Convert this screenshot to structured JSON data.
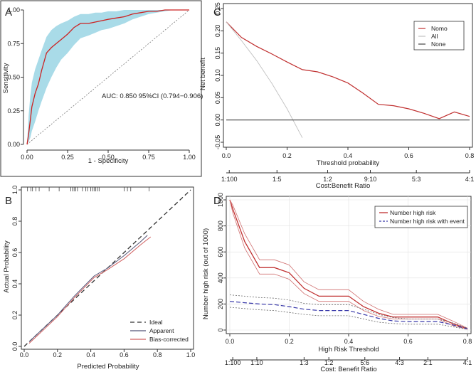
{
  "chart_data": [
    {
      "panel": "A",
      "type": "line",
      "xlabel": "1 - Specificity",
      "ylabel": "Sensitivity",
      "xlim": [
        0,
        1
      ],
      "ylim": [
        0,
        1
      ],
      "xticks": [
        "0.00",
        "0.25",
        "0.50",
        "0.75",
        "1.00"
      ],
      "yticks": [
        "0.00",
        "0.25",
        "0.50",
        "0.75",
        "1.00"
      ],
      "annotation": "AUC: 0.850 95%CI (0.794−0.906)",
      "roc": {
        "x": [
          0,
          0.01,
          0.02,
          0.03,
          0.05,
          0.07,
          0.09,
          0.12,
          0.15,
          0.18,
          0.21,
          0.25,
          0.29,
          0.33,
          0.38,
          0.42,
          0.46,
          0.5,
          0.55,
          0.6,
          0.65,
          0.7,
          0.75,
          0.8,
          0.85,
          0.9,
          1.0
        ],
        "y": [
          0,
          0.08,
          0.18,
          0.28,
          0.38,
          0.45,
          0.55,
          0.68,
          0.72,
          0.75,
          0.78,
          0.82,
          0.87,
          0.9,
          0.9,
          0.91,
          0.92,
          0.93,
          0.94,
          0.95,
          0.97,
          0.98,
          0.99,
          0.99,
          1.0,
          1.0,
          1.0
        ]
      },
      "ci_upper": [
        0,
        0.22,
        0.36,
        0.46,
        0.56,
        0.63,
        0.7,
        0.8,
        0.85,
        0.88,
        0.9,
        0.92,
        0.95,
        0.97,
        0.97,
        0.98,
        0.98,
        0.99,
        0.99,
        1.0,
        1.0,
        1.0,
        1.0,
        1.0,
        1.0,
        1.0,
        1.0
      ],
      "ci_lower": [
        0,
        0.02,
        0.05,
        0.1,
        0.17,
        0.25,
        0.32,
        0.42,
        0.5,
        0.57,
        0.63,
        0.68,
        0.74,
        0.79,
        0.81,
        0.83,
        0.85,
        0.86,
        0.88,
        0.9,
        0.93,
        0.95,
        0.97,
        0.98,
        0.99,
        1.0,
        1.0
      ],
      "colors": {
        "roc": "#cc2222",
        "ci": "#a9dbe8",
        "diagonal": "#777777"
      }
    },
    {
      "panel": "B",
      "type": "line",
      "xlabel": "Predicted Probability",
      "ylabel": "Actual Probability",
      "xlim": [
        0,
        1
      ],
      "ylim": [
        0,
        1
      ],
      "xticks": [
        "0.0",
        "0.2",
        "0.4",
        "0.6",
        "0.8",
        "1.0"
      ],
      "yticks": [
        "0.0",
        "0.2",
        "0.4",
        "0.6",
        "0.8",
        "1.0"
      ],
      "rug": [
        0.02,
        0.04,
        0.05,
        0.07,
        0.09,
        0.15,
        0.21,
        0.28,
        0.29,
        0.3,
        0.31,
        0.32,
        0.35,
        0.37,
        0.38,
        0.4,
        0.41,
        0.42,
        0.43,
        0.44,
        0.45,
        0.6,
        0.62,
        0.64,
        0.75
      ],
      "series": [
        {
          "name": "Ideal",
          "x": [
            0,
            1
          ],
          "y": [
            0,
            1
          ],
          "color": "#333333",
          "dash": "6,4"
        },
        {
          "name": "Apparent",
          "x": [
            0.03,
            0.1,
            0.2,
            0.3,
            0.42,
            0.5,
            0.6,
            0.7,
            0.74
          ],
          "y": [
            0.03,
            0.1,
            0.2,
            0.32,
            0.45,
            0.5,
            0.58,
            0.67,
            0.71
          ],
          "color": "#555577",
          "dash": ""
        },
        {
          "name": "Bias-corrected",
          "x": [
            0.03,
            0.1,
            0.2,
            0.3,
            0.42,
            0.5,
            0.6,
            0.7,
            0.76
          ],
          "y": [
            0.02,
            0.09,
            0.19,
            0.31,
            0.44,
            0.49,
            0.56,
            0.65,
            0.7
          ],
          "color": "#d06060",
          "dash": ""
        }
      ],
      "legend": [
        "Ideal",
        "Apparent",
        "Bias-corrected"
      ]
    },
    {
      "panel": "C",
      "type": "line",
      "xlabel": "Threshold probability",
      "ylabel": "Net benefit",
      "x2label": "Cost:Benefit Ratio",
      "xlim": [
        0,
        0.8
      ],
      "ylim": [
        -0.05,
        0.25
      ],
      "xticks": [
        "0.0",
        "0.2",
        "0.4",
        "0.6",
        "0.8"
      ],
      "yticks": [
        "-0.05",
        "0.00",
        "0.05",
        "0.10",
        "0.15",
        "0.20",
        "0.25"
      ],
      "x2ticks": [
        {
          "label": "1:100",
          "at": 0.0099
        },
        {
          "label": "1:5",
          "at": 0.1667
        },
        {
          "label": "1:2",
          "at": 0.3333
        },
        {
          "label": "9:10",
          "at": 0.4737
        },
        {
          "label": "5:3",
          "at": 0.625
        },
        {
          "label": "4:1",
          "at": 0.8
        }
      ],
      "series": [
        {
          "name": "Nomo",
          "x": [
            0,
            0.05,
            0.1,
            0.15,
            0.2,
            0.25,
            0.3,
            0.35,
            0.4,
            0.45,
            0.5,
            0.55,
            0.6,
            0.65,
            0.7,
            0.75,
            0.8
          ],
          "y": [
            0.22,
            0.185,
            0.165,
            0.148,
            0.13,
            0.113,
            0.108,
            0.097,
            0.083,
            0.06,
            0.035,
            0.032,
            0.025,
            0.015,
            0.003,
            0.018,
            0.008
          ],
          "color": "#c03030"
        },
        {
          "name": "All",
          "x": [
            0,
            0.05,
            0.1,
            0.15,
            0.2,
            0.25
          ],
          "y": [
            0.22,
            0.178,
            0.133,
            0.082,
            0.025,
            -0.04
          ],
          "color": "#c0c0c0"
        },
        {
          "name": "None",
          "x": [
            0,
            0.8
          ],
          "y": [
            0,
            0
          ],
          "color": "#444444"
        }
      ],
      "legend": [
        "Nomo",
        "All",
        "None"
      ]
    },
    {
      "panel": "D",
      "type": "line",
      "xlabel": "High Risk Threshold",
      "ylabel": "Number high risk (out of 1000)",
      "x2label": "Cost: Benefit Ratio",
      "xlim": [
        0,
        0.8
      ],
      "ylim": [
        0,
        1000
      ],
      "xticks": [
        "0.0",
        "0.2",
        "0.4",
        "0.6",
        "0.8"
      ],
      "yticks": [
        "0",
        "200",
        "400",
        "600",
        "800",
        "1000"
      ],
      "x2ticks": [
        {
          "label": "1:100",
          "at": 0.0099
        },
        {
          "label": "1:10",
          "at": 0.0909
        },
        {
          "label": "1:3",
          "at": 0.25
        },
        {
          "label": "1:2",
          "at": 0.3333
        },
        {
          "label": "5:6",
          "at": 0.4545
        },
        {
          "label": "4:3",
          "at": 0.5714
        },
        {
          "label": "2:1",
          "at": 0.6667
        },
        {
          "label": "4:1",
          "at": 0.8
        }
      ],
      "series": [
        {
          "name": "Number high risk",
          "x": [
            0,
            0.01,
            0.05,
            0.1,
            0.15,
            0.2,
            0.25,
            0.3,
            0.35,
            0.4,
            0.45,
            0.5,
            0.55,
            0.6,
            0.65,
            0.7,
            0.75,
            0.8
          ],
          "y": [
            1000,
            930,
            680,
            480,
            480,
            440,
            320,
            260,
            260,
            260,
            180,
            130,
            100,
            100,
            100,
            100,
            50,
            10
          ],
          "color": "#c03030"
        },
        {
          "name": "Number high risk upper",
          "x": [
            0,
            0.01,
            0.05,
            0.1,
            0.15,
            0.2,
            0.25,
            0.3,
            0.35,
            0.4,
            0.45,
            0.5,
            0.55,
            0.6,
            0.65,
            0.7,
            0.75,
            0.8
          ],
          "y": [
            1000,
            960,
            740,
            540,
            540,
            500,
            370,
            310,
            310,
            310,
            220,
            160,
            120,
            120,
            120,
            120,
            70,
            15
          ],
          "color": "#d07070"
        },
        {
          "name": "Number high risk lower",
          "x": [
            0,
            0.01,
            0.05,
            0.1,
            0.15,
            0.2,
            0.25,
            0.3,
            0.35,
            0.4,
            0.45,
            0.5,
            0.55,
            0.6,
            0.65,
            0.7,
            0.75,
            0.8
          ],
          "y": [
            1000,
            900,
            630,
            430,
            430,
            390,
            280,
            220,
            220,
            220,
            150,
            105,
            85,
            85,
            85,
            85,
            35,
            5
          ],
          "color": "#d07070"
        },
        {
          "name": "Number high risk with event",
          "x": [
            0,
            0.05,
            0.1,
            0.15,
            0.2,
            0.25,
            0.3,
            0.35,
            0.4,
            0.45,
            0.5,
            0.55,
            0.6,
            0.65,
            0.7,
            0.75,
            0.8
          ],
          "y": [
            220,
            210,
            200,
            195,
            180,
            160,
            150,
            150,
            150,
            120,
            90,
            70,
            65,
            65,
            65,
            40,
            10
          ],
          "color": "#3a3aaa"
        },
        {
          "name": "Number high risk with event upper",
          "x": [
            0,
            0.05,
            0.1,
            0.15,
            0.2,
            0.25,
            0.3,
            0.35,
            0.4,
            0.45,
            0.5,
            0.55,
            0.6,
            0.65,
            0.7,
            0.75,
            0.8
          ],
          "y": [
            270,
            260,
            250,
            245,
            230,
            205,
            195,
            195,
            195,
            160,
            120,
            95,
            85,
            85,
            85,
            55,
            15
          ],
          "color": "#666666"
        },
        {
          "name": "Number high risk with event lower",
          "x": [
            0,
            0.05,
            0.1,
            0.15,
            0.2,
            0.25,
            0.3,
            0.35,
            0.4,
            0.45,
            0.5,
            0.55,
            0.6,
            0.65,
            0.7,
            0.75,
            0.8
          ],
          "y": [
            175,
            165,
            155,
            150,
            135,
            120,
            110,
            110,
            110,
            85,
            60,
            50,
            45,
            45,
            45,
            25,
            5
          ],
          "color": "#666666"
        }
      ],
      "legend": [
        "Number high risk",
        "Number high risk with event"
      ]
    }
  ]
}
